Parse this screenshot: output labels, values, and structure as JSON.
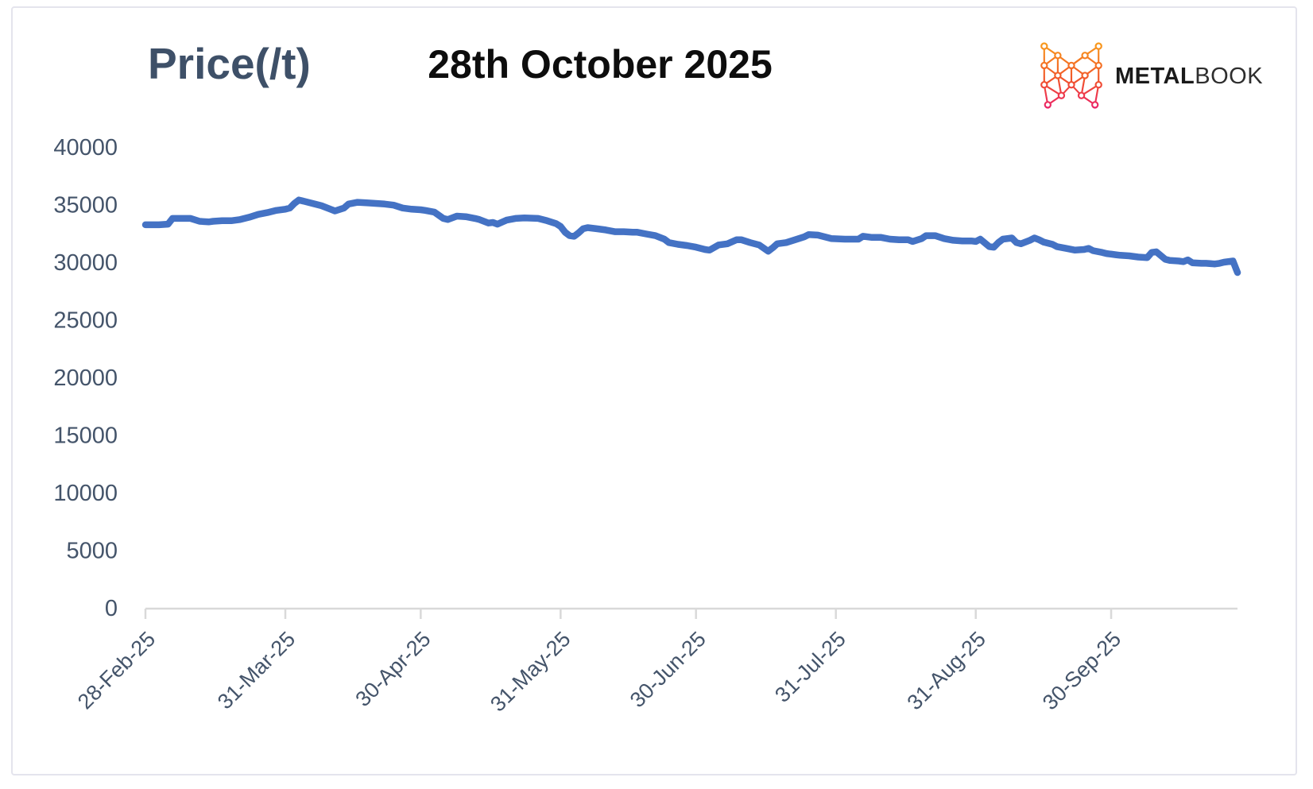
{
  "logo": {
    "brand_bold": "METAL",
    "brand_light": "BOOK",
    "icon": "metalbook-network-m-icon",
    "icon_gradient": [
      "#F9A11B",
      "#F1562A",
      "#EA1D6F"
    ]
  },
  "chart_data": {
    "type": "line",
    "title": "28th October 2025",
    "y_axis_title": "Price(/t)",
    "grid": false,
    "legend": "none",
    "axis_text_color": "#44546A",
    "axis_line_color": "#D9D9D9",
    "x_range": [
      "28-Feb-25",
      "28-Oct-25"
    ],
    "x_tick_labels": [
      "28-Feb-25",
      "31-Mar-25",
      "30-Apr-25",
      "31-May-25",
      "30-Jun-25",
      "31-Jul-25",
      "31-Aug-25",
      "30-Sep-25"
    ],
    "y_ticks": [
      0,
      5000,
      10000,
      15000,
      20000,
      25000,
      30000,
      35000,
      40000
    ],
    "ylim": [
      0,
      40000
    ],
    "series": [
      {
        "name": "Price",
        "color": "#4472C4",
        "points": [
          [
            "28-Feb",
            33250
          ],
          [
            "03-Mar",
            33250
          ],
          [
            "05-Mar",
            33300
          ],
          [
            "06-Mar",
            33800
          ],
          [
            "08-Mar",
            33800
          ],
          [
            "10-Mar",
            33800
          ],
          [
            "12-Mar",
            33550
          ],
          [
            "14-Mar",
            33500
          ],
          [
            "15-Mar",
            33550
          ],
          [
            "17-Mar",
            33600
          ],
          [
            "19-Mar",
            33600
          ],
          [
            "21-Mar",
            33700
          ],
          [
            "23-Mar",
            33900
          ],
          [
            "25-Mar",
            34150
          ],
          [
            "27-Mar",
            34300
          ],
          [
            "29-Mar",
            34500
          ],
          [
            "31-Mar",
            34600
          ],
          [
            "01-Apr",
            34700
          ],
          [
            "02-Apr",
            35100
          ],
          [
            "03-Apr",
            35400
          ],
          [
            "04-Apr",
            35300
          ],
          [
            "06-Apr",
            35100
          ],
          [
            "08-Apr",
            34900
          ],
          [
            "10-Apr",
            34600
          ],
          [
            "11-Apr",
            34450
          ],
          [
            "13-Apr",
            34700
          ],
          [
            "14-Apr",
            35050
          ],
          [
            "16-Apr",
            35200
          ],
          [
            "18-Apr",
            35150
          ],
          [
            "20-Apr",
            35100
          ],
          [
            "22-Apr",
            35050
          ],
          [
            "24-Apr",
            34950
          ],
          [
            "26-Apr",
            34700
          ],
          [
            "28-Apr",
            34600
          ],
          [
            "30-Apr",
            34550
          ],
          [
            "01-May",
            34500
          ],
          [
            "03-May",
            34350
          ],
          [
            "05-May",
            33800
          ],
          [
            "06-May",
            33700
          ],
          [
            "08-May",
            34000
          ],
          [
            "10-May",
            33950
          ],
          [
            "12-May",
            33800
          ],
          [
            "13-May",
            33700
          ],
          [
            "15-May",
            33400
          ],
          [
            "16-May",
            33450
          ],
          [
            "17-May",
            33300
          ],
          [
            "19-May",
            33650
          ],
          [
            "21-May",
            33800
          ],
          [
            "23-May",
            33850
          ],
          [
            "26-May",
            33800
          ],
          [
            "28-May",
            33600
          ],
          [
            "30-May",
            33350
          ],
          [
            "31-May",
            33100
          ],
          [
            "01-Jun",
            32600
          ],
          [
            "02-Jun",
            32300
          ],
          [
            "03-Jun",
            32250
          ],
          [
            "04-Jun",
            32550
          ],
          [
            "05-Jun",
            32900
          ],
          [
            "06-Jun",
            33000
          ],
          [
            "08-Jun",
            32900
          ],
          [
            "10-Jun",
            32800
          ],
          [
            "12-Jun",
            32650
          ],
          [
            "14-Jun",
            32650
          ],
          [
            "16-Jun",
            32600
          ],
          [
            "17-Jun",
            32600
          ],
          [
            "19-Jun",
            32450
          ],
          [
            "21-Jun",
            32300
          ],
          [
            "23-Jun",
            32000
          ],
          [
            "24-Jun",
            31700
          ],
          [
            "26-Jun",
            31550
          ],
          [
            "28-Jun",
            31450
          ],
          [
            "30-Jun",
            31300
          ],
          [
            "02-Jul",
            31100
          ],
          [
            "03-Jul",
            31050
          ],
          [
            "05-Jul",
            31500
          ],
          [
            "07-Jul",
            31600
          ],
          [
            "09-Jul",
            31950
          ],
          [
            "10-Jul",
            31950
          ],
          [
            "12-Jul",
            31700
          ],
          [
            "14-Jul",
            31500
          ],
          [
            "16-Jul",
            30950
          ],
          [
            "17-Jul",
            31250
          ],
          [
            "18-Jul",
            31600
          ],
          [
            "20-Jul",
            31700
          ],
          [
            "22-Jul",
            31950
          ],
          [
            "24-Jul",
            32200
          ],
          [
            "25-Jul",
            32400
          ],
          [
            "27-Jul",
            32350
          ],
          [
            "30-Jul",
            32050
          ],
          [
            "02-Aug",
            32000
          ],
          [
            "05-Aug",
            32000
          ],
          [
            "06-Aug",
            32250
          ],
          [
            "08-Aug",
            32150
          ],
          [
            "10-Aug",
            32150
          ],
          [
            "12-Aug",
            32000
          ],
          [
            "14-Aug",
            31950
          ],
          [
            "16-Aug",
            31950
          ],
          [
            "17-Aug",
            31800
          ],
          [
            "19-Aug",
            32050
          ],
          [
            "20-Aug",
            32300
          ],
          [
            "22-Aug",
            32300
          ],
          [
            "24-Aug",
            32050
          ],
          [
            "26-Aug",
            31900
          ],
          [
            "28-Aug",
            31850
          ],
          [
            "30-Aug",
            31850
          ],
          [
            "31-Aug",
            31800
          ],
          [
            "01-Sep",
            32000
          ],
          [
            "03-Sep",
            31350
          ],
          [
            "04-Sep",
            31300
          ],
          [
            "05-Sep",
            31700
          ],
          [
            "06-Sep",
            32000
          ],
          [
            "08-Sep",
            32100
          ],
          [
            "09-Sep",
            31700
          ],
          [
            "10-Sep",
            31600
          ],
          [
            "12-Sep",
            31900
          ],
          [
            "13-Sep",
            32100
          ],
          [
            "14-Sep",
            31950
          ],
          [
            "15-Sep",
            31750
          ],
          [
            "17-Sep",
            31550
          ],
          [
            "18-Sep",
            31350
          ],
          [
            "20-Sep",
            31200
          ],
          [
            "22-Sep",
            31050
          ],
          [
            "24-Sep",
            31100
          ],
          [
            "25-Sep",
            31200
          ],
          [
            "26-Sep",
            31000
          ],
          [
            "28-Sep",
            30850
          ],
          [
            "29-Sep",
            30750
          ],
          [
            "01-Oct",
            30650
          ],
          [
            "02-Oct",
            30600
          ],
          [
            "04-Oct",
            30550
          ],
          [
            "06-Oct",
            30450
          ],
          [
            "08-Oct",
            30400
          ],
          [
            "09-Oct",
            30850
          ],
          [
            "10-Oct",
            30900
          ],
          [
            "12-Oct",
            30250
          ],
          [
            "13-Oct",
            30150
          ],
          [
            "15-Oct",
            30100
          ],
          [
            "16-Oct",
            30050
          ],
          [
            "17-Oct",
            30200
          ],
          [
            "18-Oct",
            29950
          ],
          [
            "20-Oct",
            29900
          ],
          [
            "21-Oct",
            29900
          ],
          [
            "23-Oct",
            29850
          ],
          [
            "24-Oct",
            29900
          ],
          [
            "25-Oct",
            30000
          ],
          [
            "27-Oct",
            30100
          ],
          [
            "28-Oct",
            29100
          ]
        ]
      }
    ]
  }
}
